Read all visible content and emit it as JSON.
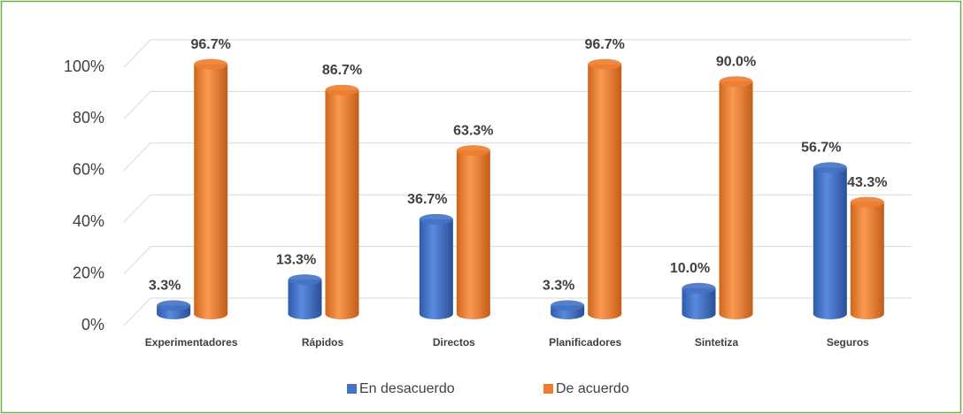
{
  "chart_data": {
    "type": "bar3d",
    "categories": [
      "Experimentadores",
      "Rápidos",
      "Directos",
      "Planificadores",
      "Sintetiza",
      "Seguros"
    ],
    "series": [
      {
        "name": "En desacuerdo",
        "color": "#4472c4",
        "values": [
          3.3,
          13.3,
          36.7,
          3.3,
          10.0,
          56.7
        ],
        "value_labels": [
          "3.3%",
          "13.3%",
          "36.7%",
          "3.3%",
          "10.0%",
          "56.7%"
        ]
      },
      {
        "name": "De acuerdo",
        "color": "#ed7d31",
        "values": [
          96.7,
          86.7,
          63.3,
          96.7,
          90.0,
          43.3
        ],
        "value_labels": [
          "96.7%",
          "86.7%",
          "63.3%",
          "96.7%",
          "90.0%",
          "43.3%"
        ]
      }
    ],
    "ylim": [
      0,
      100
    ],
    "yticks": [
      {
        "value": 0,
        "label": "0%"
      },
      {
        "value": 20,
        "label": "20%"
      },
      {
        "value": 40,
        "label": "40%"
      },
      {
        "value": 60,
        "label": "60%"
      },
      {
        "value": 80,
        "label": "80%"
      },
      {
        "value": 100,
        "label": "100%"
      }
    ],
    "grid": true,
    "legend": "bottom"
  }
}
